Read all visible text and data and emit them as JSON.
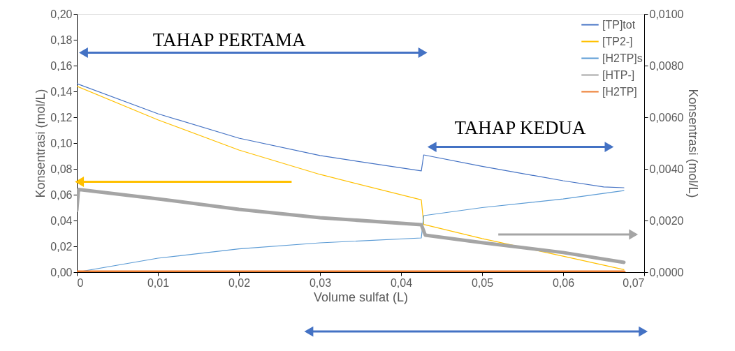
{
  "chart_data": {
    "type": "line",
    "xlabel": "Volume sulfat (L)",
    "ylabel": "Konsentrasi (mol/L)",
    "y2label": "Konsentrasi (mol/L)",
    "xlim": [
      0,
      0.07
    ],
    "xticks": [
      {
        "value": 0,
        "label": "0"
      },
      {
        "value": 0.01,
        "label": "0,01"
      },
      {
        "value": 0.02,
        "label": "0,02"
      },
      {
        "value": 0.03,
        "label": "0,03"
      },
      {
        "value": 0.04,
        "label": "0,04"
      },
      {
        "value": 0.05,
        "label": "0,05"
      },
      {
        "value": 0.06,
        "label": "0,06"
      },
      {
        "value": 0.07,
        "label": "0,07"
      }
    ],
    "ylim": [
      0,
      0.2
    ],
    "yticks": [
      {
        "value": 0,
        "label": "0,00"
      },
      {
        "value": 0.02,
        "label": "0,02"
      },
      {
        "value": 0.04,
        "label": "0,04"
      },
      {
        "value": 0.06,
        "label": "0,06"
      },
      {
        "value": 0.08,
        "label": "0,08"
      },
      {
        "value": 0.1,
        "label": "0,10"
      },
      {
        "value": 0.12,
        "label": "0,12"
      },
      {
        "value": 0.14,
        "label": "0,14"
      },
      {
        "value": 0.16,
        "label": "0,16"
      },
      {
        "value": 0.18,
        "label": "0,18"
      },
      {
        "value": 0.2,
        "label": "0,20"
      }
    ],
    "y2lim": [
      0,
      0.01
    ],
    "y2ticks": [
      {
        "value": 0,
        "label": "0,0000"
      },
      {
        "value": 0.002,
        "label": "0,0020"
      },
      {
        "value": 0.004,
        "label": "0,0040"
      },
      {
        "value": 0.006,
        "label": "0,0060"
      },
      {
        "value": 0.008,
        "label": "0,0080"
      },
      {
        "value": 0.01,
        "label": "0,0100"
      }
    ],
    "legend": "top right",
    "grid": false,
    "annotations": [
      "TAHAP PERTAMA",
      "TAHAP KEDUA"
    ],
    "series": [
      {
        "name": "[TP]tot",
        "color": "#4472c4",
        "x": [
          0,
          0.01,
          0.02,
          0.03,
          0.0425,
          0.0428,
          0.05,
          0.06,
          0.065,
          0.0675
        ],
        "values": [
          0.146,
          0.1227,
          0.1038,
          0.0903,
          0.0784,
          0.0908,
          0.082,
          0.0708,
          0.066,
          0.0654
        ]
      },
      {
        "name": "[TP2-]",
        "color": "#ffc000",
        "x": [
          0,
          0.01,
          0.02,
          0.03,
          0.0425,
          0.0428,
          0.05,
          0.06,
          0.0675
        ],
        "values": [
          0.144,
          0.118,
          0.0946,
          0.0757,
          0.056,
          0.037,
          0.026,
          0.0124,
          0.002
        ]
      },
      {
        "name": "[H2TP]s",
        "color": "#5b9bd5",
        "x": [
          0,
          0.01,
          0.02,
          0.03,
          0.0425,
          0.0428,
          0.05,
          0.06,
          0.0675
        ],
        "values": [
          0,
          0.0108,
          0.018,
          0.0227,
          0.0265,
          0.0438,
          0.05,
          0.0567,
          0.0632
        ]
      },
      {
        "name": "[HTP-]",
        "color": "#a5a5a5",
        "axis": "y2",
        "x": [
          0,
          0.0002,
          0.01,
          0.02,
          0.03,
          0.0425,
          0.043,
          0.05,
          0.06,
          0.0675
        ],
        "values": [
          0.0024,
          0.0032,
          0.00284,
          0.00243,
          0.00211,
          0.00184,
          0.00143,
          0.00114,
          0.00076,
          0.00038
        ]
      },
      {
        "name": "[H2TP]",
        "color": "#ed7d31",
        "x": [
          0,
          0.01,
          0.02,
          0.03,
          0.04,
          0.05,
          0.06,
          0.0675
        ],
        "values": [
          0,
          0,
          0,
          0,
          0,
          0,
          0,
          0
        ]
      }
    ]
  }
}
